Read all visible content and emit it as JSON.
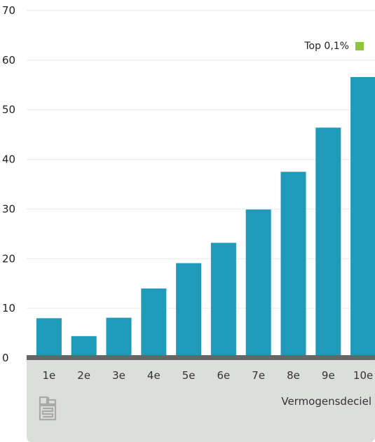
{
  "chart_data": {
    "type": "bar",
    "categories": [
      "1e",
      "2e",
      "3e",
      "4e",
      "5e",
      "6e",
      "7e",
      "8e",
      "9e",
      "10e"
    ],
    "series": [
      {
        "values": [
          8.0,
          4.4,
          8.1,
          14.0,
          19.1,
          23.2,
          29.9,
          37.5,
          46.4,
          56.6
        ],
        "color": "#1f9ab9"
      }
    ],
    "xlabel": "Vermogensdeciel",
    "ylabel": "",
    "ylim": [
      0,
      70
    ],
    "yticks": [
      0,
      10,
      20,
      30,
      40,
      50,
      60,
      70
    ],
    "grid": true,
    "legend": [
      {
        "label": "Top 0,1%",
        "color": "#8cc63f"
      }
    ],
    "legend_position": "top-right",
    "logo": "cbs-logo"
  }
}
